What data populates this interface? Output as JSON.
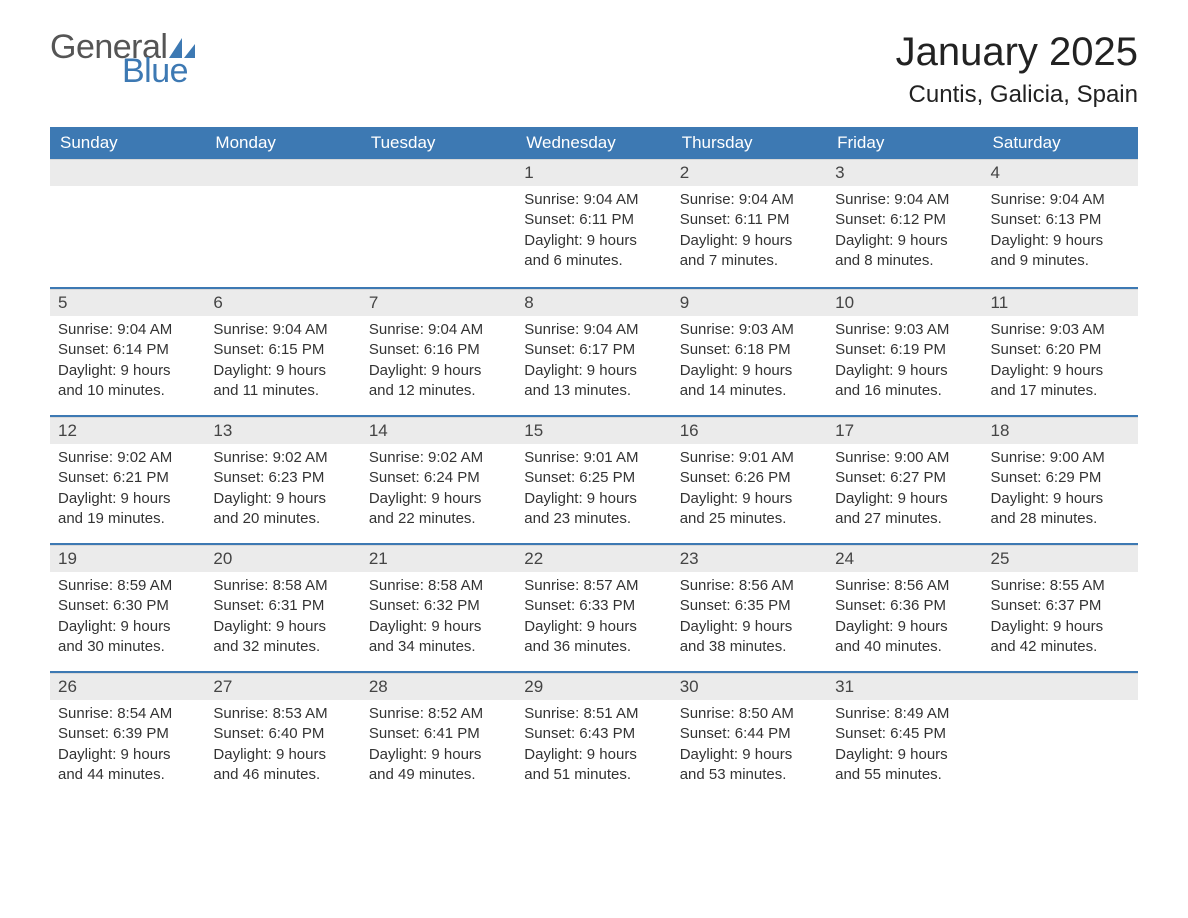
{
  "logo": {
    "word1": "General",
    "word2": "Blue"
  },
  "title": "January 2025",
  "location": "Cuntis, Galicia, Spain",
  "colors": {
    "header_bg": "#3d79b3",
    "header_text": "#ffffff",
    "daynum_bg": "#ebebeb",
    "border": "#3d79b3",
    "body_text": "#333333",
    "logo_gray": "#555555",
    "logo_blue": "#3d79b3"
  },
  "weekdays": [
    "Sunday",
    "Monday",
    "Tuesday",
    "Wednesday",
    "Thursday",
    "Friday",
    "Saturday"
  ],
  "weeks": [
    [
      {
        "n": "",
        "sr": "",
        "ss": "",
        "d1": "",
        "d2": ""
      },
      {
        "n": "",
        "sr": "",
        "ss": "",
        "d1": "",
        "d2": ""
      },
      {
        "n": "",
        "sr": "",
        "ss": "",
        "d1": "",
        "d2": ""
      },
      {
        "n": "1",
        "sr": "Sunrise: 9:04 AM",
        "ss": "Sunset: 6:11 PM",
        "d1": "Daylight: 9 hours",
        "d2": "and 6 minutes."
      },
      {
        "n": "2",
        "sr": "Sunrise: 9:04 AM",
        "ss": "Sunset: 6:11 PM",
        "d1": "Daylight: 9 hours",
        "d2": "and 7 minutes."
      },
      {
        "n": "3",
        "sr": "Sunrise: 9:04 AM",
        "ss": "Sunset: 6:12 PM",
        "d1": "Daylight: 9 hours",
        "d2": "and 8 minutes."
      },
      {
        "n": "4",
        "sr": "Sunrise: 9:04 AM",
        "ss": "Sunset: 6:13 PM",
        "d1": "Daylight: 9 hours",
        "d2": "and 9 minutes."
      }
    ],
    [
      {
        "n": "5",
        "sr": "Sunrise: 9:04 AM",
        "ss": "Sunset: 6:14 PM",
        "d1": "Daylight: 9 hours",
        "d2": "and 10 minutes."
      },
      {
        "n": "6",
        "sr": "Sunrise: 9:04 AM",
        "ss": "Sunset: 6:15 PM",
        "d1": "Daylight: 9 hours",
        "d2": "and 11 minutes."
      },
      {
        "n": "7",
        "sr": "Sunrise: 9:04 AM",
        "ss": "Sunset: 6:16 PM",
        "d1": "Daylight: 9 hours",
        "d2": "and 12 minutes."
      },
      {
        "n": "8",
        "sr": "Sunrise: 9:04 AM",
        "ss": "Sunset: 6:17 PM",
        "d1": "Daylight: 9 hours",
        "d2": "and 13 minutes."
      },
      {
        "n": "9",
        "sr": "Sunrise: 9:03 AM",
        "ss": "Sunset: 6:18 PM",
        "d1": "Daylight: 9 hours",
        "d2": "and 14 minutes."
      },
      {
        "n": "10",
        "sr": "Sunrise: 9:03 AM",
        "ss": "Sunset: 6:19 PM",
        "d1": "Daylight: 9 hours",
        "d2": "and 16 minutes."
      },
      {
        "n": "11",
        "sr": "Sunrise: 9:03 AM",
        "ss": "Sunset: 6:20 PM",
        "d1": "Daylight: 9 hours",
        "d2": "and 17 minutes."
      }
    ],
    [
      {
        "n": "12",
        "sr": "Sunrise: 9:02 AM",
        "ss": "Sunset: 6:21 PM",
        "d1": "Daylight: 9 hours",
        "d2": "and 19 minutes."
      },
      {
        "n": "13",
        "sr": "Sunrise: 9:02 AM",
        "ss": "Sunset: 6:23 PM",
        "d1": "Daylight: 9 hours",
        "d2": "and 20 minutes."
      },
      {
        "n": "14",
        "sr": "Sunrise: 9:02 AM",
        "ss": "Sunset: 6:24 PM",
        "d1": "Daylight: 9 hours",
        "d2": "and 22 minutes."
      },
      {
        "n": "15",
        "sr": "Sunrise: 9:01 AM",
        "ss": "Sunset: 6:25 PM",
        "d1": "Daylight: 9 hours",
        "d2": "and 23 minutes."
      },
      {
        "n": "16",
        "sr": "Sunrise: 9:01 AM",
        "ss": "Sunset: 6:26 PM",
        "d1": "Daylight: 9 hours",
        "d2": "and 25 minutes."
      },
      {
        "n": "17",
        "sr": "Sunrise: 9:00 AM",
        "ss": "Sunset: 6:27 PM",
        "d1": "Daylight: 9 hours",
        "d2": "and 27 minutes."
      },
      {
        "n": "18",
        "sr": "Sunrise: 9:00 AM",
        "ss": "Sunset: 6:29 PM",
        "d1": "Daylight: 9 hours",
        "d2": "and 28 minutes."
      }
    ],
    [
      {
        "n": "19",
        "sr": "Sunrise: 8:59 AM",
        "ss": "Sunset: 6:30 PM",
        "d1": "Daylight: 9 hours",
        "d2": "and 30 minutes."
      },
      {
        "n": "20",
        "sr": "Sunrise: 8:58 AM",
        "ss": "Sunset: 6:31 PM",
        "d1": "Daylight: 9 hours",
        "d2": "and 32 minutes."
      },
      {
        "n": "21",
        "sr": "Sunrise: 8:58 AM",
        "ss": "Sunset: 6:32 PM",
        "d1": "Daylight: 9 hours",
        "d2": "and 34 minutes."
      },
      {
        "n": "22",
        "sr": "Sunrise: 8:57 AM",
        "ss": "Sunset: 6:33 PM",
        "d1": "Daylight: 9 hours",
        "d2": "and 36 minutes."
      },
      {
        "n": "23",
        "sr": "Sunrise: 8:56 AM",
        "ss": "Sunset: 6:35 PM",
        "d1": "Daylight: 9 hours",
        "d2": "and 38 minutes."
      },
      {
        "n": "24",
        "sr": "Sunrise: 8:56 AM",
        "ss": "Sunset: 6:36 PM",
        "d1": "Daylight: 9 hours",
        "d2": "and 40 minutes."
      },
      {
        "n": "25",
        "sr": "Sunrise: 8:55 AM",
        "ss": "Sunset: 6:37 PM",
        "d1": "Daylight: 9 hours",
        "d2": "and 42 minutes."
      }
    ],
    [
      {
        "n": "26",
        "sr": "Sunrise: 8:54 AM",
        "ss": "Sunset: 6:39 PM",
        "d1": "Daylight: 9 hours",
        "d2": "and 44 minutes."
      },
      {
        "n": "27",
        "sr": "Sunrise: 8:53 AM",
        "ss": "Sunset: 6:40 PM",
        "d1": "Daylight: 9 hours",
        "d2": "and 46 minutes."
      },
      {
        "n": "28",
        "sr": "Sunrise: 8:52 AM",
        "ss": "Sunset: 6:41 PM",
        "d1": "Daylight: 9 hours",
        "d2": "and 49 minutes."
      },
      {
        "n": "29",
        "sr": "Sunrise: 8:51 AM",
        "ss": "Sunset: 6:43 PM",
        "d1": "Daylight: 9 hours",
        "d2": "and 51 minutes."
      },
      {
        "n": "30",
        "sr": "Sunrise: 8:50 AM",
        "ss": "Sunset: 6:44 PM",
        "d1": "Daylight: 9 hours",
        "d2": "and 53 minutes."
      },
      {
        "n": "31",
        "sr": "Sunrise: 8:49 AM",
        "ss": "Sunset: 6:45 PM",
        "d1": "Daylight: 9 hours",
        "d2": "and 55 minutes."
      },
      {
        "n": "",
        "sr": "",
        "ss": "",
        "d1": "",
        "d2": ""
      }
    ]
  ]
}
